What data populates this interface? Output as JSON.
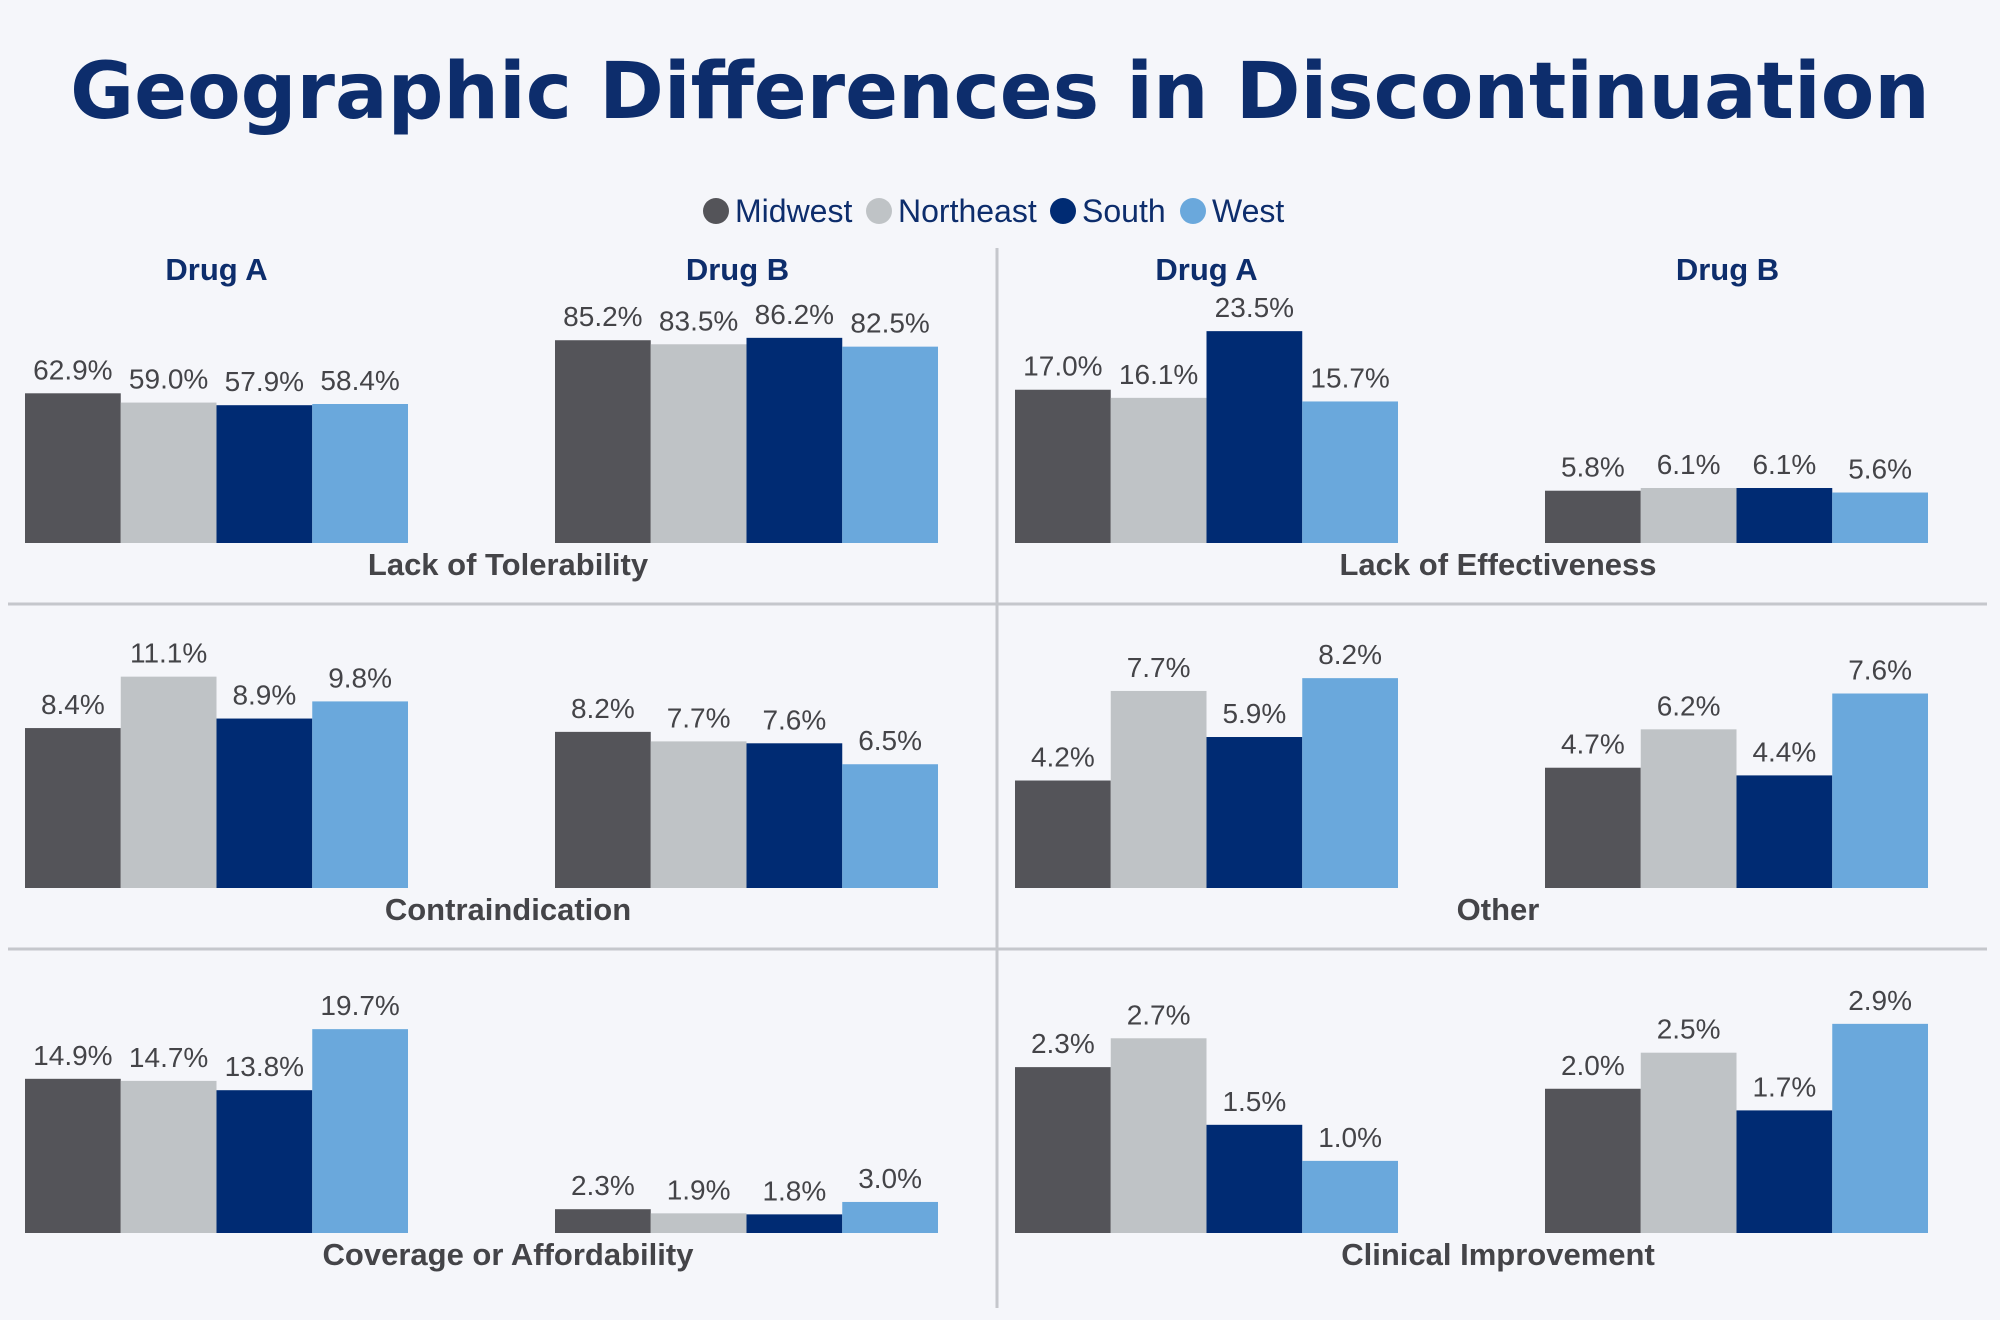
{
  "title": "Geographic Differences in Discontinuation",
  "colors": {
    "background": "#f5f6fa",
    "title": "#0d2d6c",
    "divider": "#c5c7cc",
    "label": "#444448"
  },
  "chart_data": {
    "type": "bar",
    "series": [
      {
        "name": "Midwest",
        "color": "#545459"
      },
      {
        "name": "Northeast",
        "color": "#bfc3c6"
      },
      {
        "name": "South",
        "color": "#002b73"
      },
      {
        "name": "West",
        "color": "#6aa8dc"
      }
    ],
    "drug_labels": [
      "Drug A",
      "Drug B"
    ],
    "value_suffix": "%",
    "panels": [
      {
        "title": "Lack of Tolerability",
        "scale_max": 100,
        "groups": [
          {
            "drug": "Drug A",
            "values": [
              62.9,
              59.0,
              57.9,
              58.4
            ]
          },
          {
            "drug": "Drug B",
            "values": [
              85.2,
              83.5,
              86.2,
              82.5
            ]
          }
        ]
      },
      {
        "title": "Lack of Effectiveness",
        "scale_max": 26.4,
        "groups": [
          {
            "drug": "Drug A",
            "values": [
              17.0,
              16.1,
              23.5,
              15.7
            ]
          },
          {
            "drug": "Drug B",
            "values": [
              5.8,
              6.1,
              6.1,
              5.6
            ]
          }
        ]
      },
      {
        "title": "Contraindication",
        "scale_max": 12.5,
        "groups": [
          {
            "drug": "Drug A",
            "values": [
              8.4,
              11.1,
              8.9,
              9.8
            ]
          },
          {
            "drug": "Drug B",
            "values": [
              8.2,
              7.7,
              7.6,
              6.5
            ]
          }
        ]
      },
      {
        "title": "Other",
        "scale_max": 9.3,
        "groups": [
          {
            "drug": "Drug A",
            "values": [
              4.2,
              7.7,
              5.9,
              8.2
            ]
          },
          {
            "drug": "Drug B",
            "values": [
              4.7,
              6.2,
              4.4,
              7.6
            ]
          }
        ]
      },
      {
        "title": "Coverage or Affordability",
        "scale_max": 23.0,
        "groups": [
          {
            "drug": "Drug A",
            "values": [
              14.9,
              14.7,
              13.8,
              19.7
            ]
          },
          {
            "drug": "Drug B",
            "values": [
              2.3,
              1.9,
              1.8,
              3.0
            ]
          }
        ]
      },
      {
        "title": "Clinical Improvement",
        "scale_max": 3.3,
        "groups": [
          {
            "drug": "Drug A",
            "values": [
              2.3,
              2.7,
              1.5,
              1.0
            ]
          },
          {
            "drug": "Drug B",
            "values": [
              2.0,
              2.5,
              1.7,
              2.9
            ]
          }
        ]
      }
    ]
  }
}
